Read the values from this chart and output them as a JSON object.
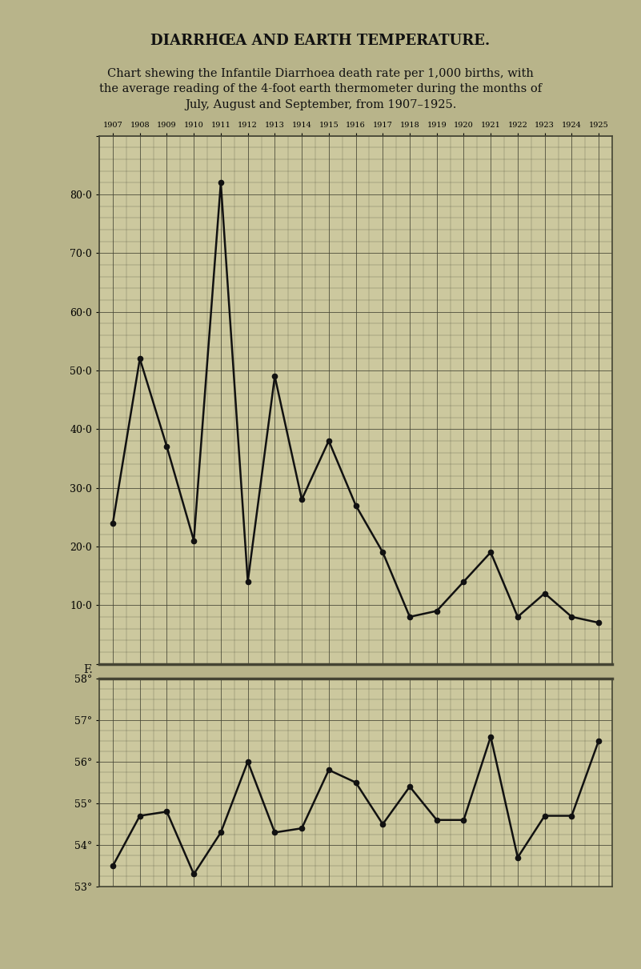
{
  "title": "DIARRHŒA AND EARTH TEMPERATURE.",
  "subtitle_lines": [
    "Chart shewing the Infantile Diarrhoea death rate per 1,000 births, with",
    "the average reading of the 4-foot earth thermometer during the months of",
    "July, August and September, from 1907–1925."
  ],
  "years": [
    1907,
    1908,
    1909,
    1910,
    1911,
    1912,
    1913,
    1914,
    1915,
    1916,
    1917,
    1918,
    1919,
    1920,
    1921,
    1922,
    1923,
    1924,
    1925
  ],
  "diarrhoea": [
    24,
    52,
    37,
    21,
    82,
    14,
    49,
    28,
    38,
    27,
    19,
    8,
    9,
    14,
    19,
    8,
    12,
    8,
    7
  ],
  "temperature": [
    53.5,
    54.7,
    54.8,
    53.3,
    54.3,
    56.0,
    54.3,
    54.4,
    55.8,
    55.5,
    54.5,
    55.4,
    54.6,
    54.6,
    56.6,
    53.7,
    54.7,
    54.7,
    56.5
  ],
  "bg_color": "#b8b48a",
  "plot_bg_color": "#ccc89e",
  "grid_color": "#444433",
  "line_color": "#111111",
  "diarr_yticks": [
    10.0,
    20.0,
    30.0,
    40.0,
    50.0,
    60.0,
    70.0,
    80.0
  ],
  "temp_yticks": [
    53,
    54,
    55,
    56,
    57,
    58
  ],
  "title_fontsize": 13,
  "subtitle_fontsize": 10.5,
  "tick_fontsize": 9,
  "year_fontsize": 7
}
